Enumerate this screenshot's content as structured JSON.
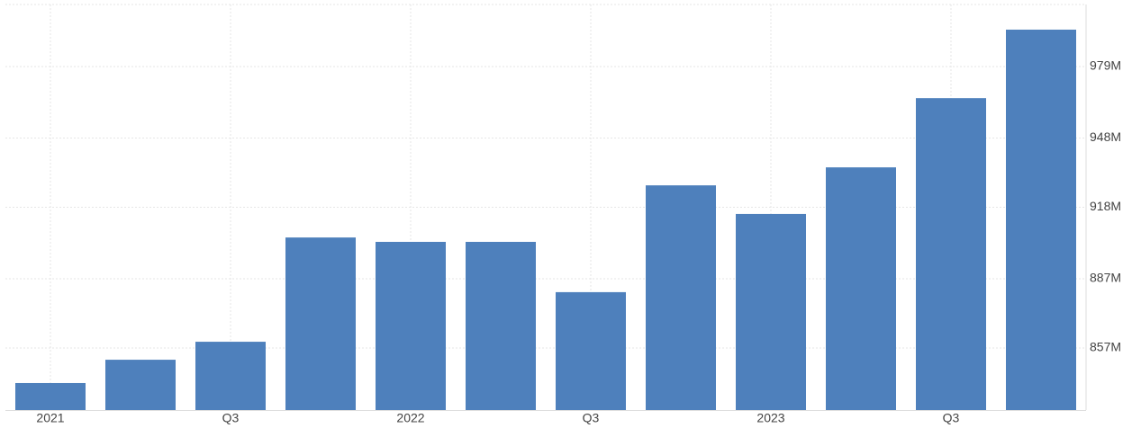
{
  "chart_data": {
    "type": "bar",
    "categories": [
      "2021",
      null,
      "Q3",
      null,
      "2022",
      null,
      "Q3",
      null,
      "2023",
      null,
      "Q3",
      null
    ],
    "values": [
      841.8,
      851.9,
      859.7,
      904.9,
      903.0,
      903.0,
      881.2,
      927.5,
      915.1,
      935.3,
      965.3,
      995.0
    ],
    "color": "#4e80bc",
    "ylim": [
      830.1,
      1005.9
    ],
    "yticks": [
      {
        "value": 857,
        "label": "857M"
      },
      {
        "value": 887,
        "label": "887M"
      },
      {
        "value": 918,
        "label": "918M"
      },
      {
        "value": 948,
        "label": "948M"
      },
      {
        "value": 979,
        "label": "979M"
      }
    ],
    "grid": true
  }
}
